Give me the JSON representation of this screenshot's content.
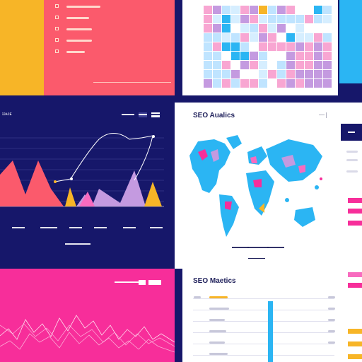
{
  "seo_map_panel": {
    "title": "SEO Aualics",
    "legend": [
      "▬▬▬▬",
      "▬▬▬▬▬",
      "▬▬▬▬"
    ]
  },
  "seo_metrics_panel": {
    "title": "SEO Maetics"
  },
  "chart_panel": {
    "corner_label": "ɪᴊᴀᴄᴇ",
    "tabs": [
      "▬▬▬",
      "▬▬",
      "▬▬"
    ],
    "ticks": [
      "▬▬▬",
      "▬▬▬▬",
      "▬▬▬",
      "▬▬▬",
      "▬▬▬",
      "▬▬▬"
    ],
    "footer": "▬▬▬▬▬▬"
  },
  "pink_panel": {
    "label": "▬▬▬▬▬▬▬"
  },
  "colors": {
    "navy": "#16176a",
    "coral": "#fb5a6c",
    "magenta": "#f72e9a",
    "yellow": "#f7b527",
    "sky": "#2bb5f3",
    "lavender": "#c49ae0",
    "pink": "#f86bbf"
  }
}
